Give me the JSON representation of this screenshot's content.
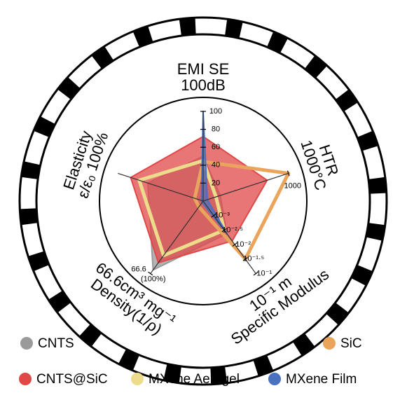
{
  "chart_data": {
    "type": "radar",
    "rlim": [
      0,
      100
    ],
    "axes": [
      {
        "label": "EMI SE",
        "sublabel": "100dB",
        "ticks": [
          20,
          40,
          60,
          80,
          100
        ]
      },
      {
        "label": "HTR",
        "sublabel": "1000°C",
        "ticks": [
          {
            "value": 100,
            "label": "1000"
          }
        ]
      },
      {
        "label": "10⁻¹ m",
        "sublabel": "Specific Modulus",
        "ticks": [
          {
            "value": 20,
            "label": "10⁻³"
          },
          {
            "value": 40,
            "label": "10⁻²·⁵"
          },
          {
            "value": 60,
            "label": "10⁻²"
          },
          {
            "value": 80,
            "label": "10⁻¹·⁵"
          },
          {
            "value": 100,
            "label": "10⁻¹"
          }
        ]
      },
      {
        "label": "66.6cm³ mg⁻¹",
        "sublabel": "Density(1/ρ)",
        "ticks": [
          {
            "value": 100,
            "label": "66.6"
          }
        ],
        "note": "(100%)"
      },
      {
        "label": "Elasticity",
        "sublabel": "ε/ε₀ 100%",
        "ticks": []
      }
    ],
    "series": [
      {
        "name": "CNTS",
        "color": "#9a9a9a",
        "style": "fill",
        "values": [
          50,
          20,
          45,
          95,
          65
        ]
      },
      {
        "name": "CNTS@SiC",
        "color": "#e04848",
        "style": "fill",
        "values": [
          72,
          75,
          55,
          85,
          85
        ]
      },
      {
        "name": "MXene Aerogel",
        "color": "#ecdc8c",
        "style": "line",
        "values": [
          45,
          15,
          40,
          75,
          75
        ]
      },
      {
        "name": "SiC",
        "color": "#eaa45c",
        "style": "line",
        "values": [
          44,
          100,
          80,
          8,
          10
        ]
      },
      {
        "name": "MXene Film",
        "color": "#4a70c0",
        "style": "fill",
        "values": [
          100,
          5,
          45,
          2,
          2
        ]
      }
    ]
  }
}
